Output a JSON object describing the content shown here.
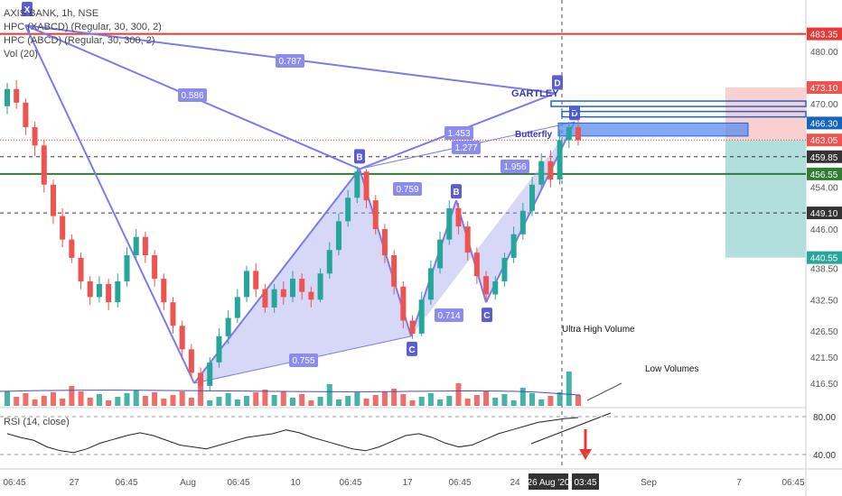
{
  "header": {
    "title": "AXIS BANK, 1h, NSE",
    "studies": [
      "HPC (XABCD) (Regular, 30, 300, 2)",
      "HPC (ABCD) (Regular, 30, 300, 2)",
      "Vol (20)"
    ]
  },
  "rsi_label": "RSI (14, close)",
  "notes": {
    "ultra": "Ultra High Volume",
    "low": "Low Volumes"
  },
  "colors": {
    "up": "#26a69a",
    "down": "#ef5350",
    "pattern": "#7b7bea",
    "pattern_fill": "#a7a7f0",
    "resistance": "#e53935",
    "support": "#2e7d32",
    "target_zone": "#b2dfdb",
    "stop_zone": "#f8d0d0",
    "rsi": "#222222"
  },
  "chart_data": {
    "type": "candlestick",
    "symbol": "AXIS BANK",
    "interval": "1h",
    "exchange": "NSE",
    "y_axis_ticks": [
      480.0,
      470.0,
      454.0,
      446.0,
      438.5,
      432.5,
      426.5,
      421.5,
      416.5
    ],
    "y_axis_price_labels": [
      {
        "value": "483.35",
        "color": "#e53935"
      },
      {
        "value": "473.10",
        "color": "#ef5350"
      },
      {
        "value": "466.30",
        "color": "#1565c0"
      },
      {
        "value": "463.05",
        "color": "#ef5350"
      },
      {
        "value": "459.85",
        "color": "#333333"
      },
      {
        "value": "456.55",
        "color": "#2e7d32"
      },
      {
        "value": "449.10",
        "color": "#333333"
      },
      {
        "value": "440.55",
        "color": "#26a69a"
      }
    ],
    "x_axis_ticks": [
      "06:45",
      "27",
      "06:45",
      "Aug",
      "06:45",
      "10",
      "06:45",
      "17",
      "06:45",
      "24",
      "26 Aug '20",
      "03:45",
      "Sep",
      "7",
      "06:45"
    ],
    "horizontal_levels": [
      {
        "price": 483.35,
        "style": "resistance"
      },
      {
        "price": 456.55,
        "style": "support"
      },
      {
        "price": 459.85,
        "style": "dashed"
      },
      {
        "price": 449.1,
        "style": "dashed"
      },
      {
        "price": 463.05,
        "style": "dotted"
      }
    ],
    "pattern_points": [
      {
        "label": "X",
        "price": 485.0
      },
      {
        "label": "B",
        "price": 457.5
      },
      {
        "label": "B",
        "price": 451.5
      },
      {
        "label": "C",
        "price": 425.5
      },
      {
        "label": "C",
        "price": 432.0
      },
      {
        "label": "D",
        "price": 472.0
      },
      {
        "label": "D",
        "price": 466.5
      }
    ],
    "ratios": [
      "0.787",
      "0.586",
      "0.759",
      "1.453",
      "1.277",
      "1.956",
      "0.714",
      "0.755"
    ],
    "pattern_names": [
      "GARTLEY",
      "Butterfly"
    ],
    "rsi": {
      "ticks": [
        "80.00",
        "40.00"
      ],
      "values": [
        62,
        58,
        55,
        48,
        44,
        42,
        46,
        52,
        56,
        60,
        63,
        60,
        55,
        50,
        48,
        46,
        50,
        54,
        58,
        60,
        62,
        66,
        63,
        58,
        54,
        50,
        46,
        44,
        48,
        54,
        60,
        62,
        58,
        52,
        48,
        50,
        56,
        62,
        66,
        70,
        74,
        76,
        78,
        79
      ]
    },
    "candles": [
      {
        "o": 469.5,
        "c": 472.8,
        "h": 474.0,
        "l": 468.0
      },
      {
        "o": 472.8,
        "c": 470.2,
        "h": 474.5,
        "l": 469.0
      },
      {
        "o": 470.2,
        "c": 465.5,
        "h": 471.0,
        "l": 464.0
      },
      {
        "o": 465.5,
        "c": 462.0,
        "h": 466.5,
        "l": 460.0
      },
      {
        "o": 462.0,
        "c": 454.5,
        "h": 463.0,
        "l": 453.0
      },
      {
        "o": 454.5,
        "c": 448.5,
        "h": 455.5,
        "l": 447.0
      },
      {
        "o": 448.5,
        "c": 444.0,
        "h": 450.0,
        "l": 442.5
      },
      {
        "o": 444.0,
        "c": 440.5,
        "h": 445.0,
        "l": 439.5
      },
      {
        "o": 440.5,
        "c": 436.0,
        "h": 441.5,
        "l": 434.5
      },
      {
        "o": 436.0,
        "c": 433.0,
        "h": 437.0,
        "l": 431.5
      },
      {
        "o": 433.0,
        "c": 435.5,
        "h": 437.0,
        "l": 432.0
      },
      {
        "o": 435.5,
        "c": 432.0,
        "h": 436.5,
        "l": 430.5
      },
      {
        "o": 432.0,
        "c": 436.0,
        "h": 437.5,
        "l": 431.0
      },
      {
        "o": 436.0,
        "c": 441.0,
        "h": 442.5,
        "l": 435.0
      },
      {
        "o": 441.0,
        "c": 444.5,
        "h": 446.0,
        "l": 440.0
      },
      {
        "o": 444.5,
        "c": 441.0,
        "h": 445.5,
        "l": 439.5
      },
      {
        "o": 441.0,
        "c": 436.5,
        "h": 442.0,
        "l": 435.0
      },
      {
        "o": 436.5,
        "c": 432.0,
        "h": 437.5,
        "l": 430.5
      },
      {
        "o": 432.0,
        "c": 427.5,
        "h": 433.0,
        "l": 426.0
      },
      {
        "o": 427.5,
        "c": 423.0,
        "h": 428.5,
        "l": 421.0
      },
      {
        "o": 423.0,
        "c": 418.5,
        "h": 424.0,
        "l": 417.5
      },
      {
        "o": 418.5,
        "c": 416.0,
        "h": 419.5,
        "l": 415.0
      },
      {
        "o": 416.0,
        "c": 420.5,
        "h": 421.5,
        "l": 415.0
      },
      {
        "o": 420.5,
        "c": 425.5,
        "h": 427.0,
        "l": 419.5
      },
      {
        "o": 425.5,
        "c": 429.0,
        "h": 430.5,
        "l": 424.0
      },
      {
        "o": 429.0,
        "c": 433.0,
        "h": 434.5,
        "l": 428.0
      },
      {
        "o": 433.0,
        "c": 438.0,
        "h": 439.0,
        "l": 432.0
      },
      {
        "o": 438.0,
        "c": 434.5,
        "h": 439.5,
        "l": 433.0
      },
      {
        "o": 434.5,
        "c": 431.0,
        "h": 435.5,
        "l": 430.0
      },
      {
        "o": 431.0,
        "c": 434.5,
        "h": 435.5,
        "l": 430.0
      },
      {
        "o": 434.5,
        "c": 433.0,
        "h": 436.0,
        "l": 431.5
      },
      {
        "o": 433.0,
        "c": 436.5,
        "h": 438.0,
        "l": 432.0
      },
      {
        "o": 436.5,
        "c": 434.0,
        "h": 437.5,
        "l": 432.5
      },
      {
        "o": 434.0,
        "c": 432.5,
        "h": 435.0,
        "l": 431.0
      },
      {
        "o": 432.5,
        "c": 437.5,
        "h": 438.5,
        "l": 432.0
      },
      {
        "o": 437.5,
        "c": 442.0,
        "h": 443.5,
        "l": 436.5
      },
      {
        "o": 442.0,
        "c": 447.5,
        "h": 449.0,
        "l": 441.0
      },
      {
        "o": 447.5,
        "c": 452.0,
        "h": 453.5,
        "l": 446.5
      },
      {
        "o": 452.0,
        "c": 457.0,
        "h": 458.0,
        "l": 451.0
      },
      {
        "o": 457.0,
        "c": 451.5,
        "h": 457.5,
        "l": 450.0
      },
      {
        "o": 451.5,
        "c": 446.0,
        "h": 452.5,
        "l": 445.0
      },
      {
        "o": 446.0,
        "c": 441.0,
        "h": 447.0,
        "l": 439.5
      },
      {
        "o": 441.0,
        "c": 435.0,
        "h": 442.0,
        "l": 433.5
      },
      {
        "o": 435.0,
        "c": 428.5,
        "h": 436.0,
        "l": 427.0
      },
      {
        "o": 428.5,
        "c": 426.0,
        "h": 429.5,
        "l": 425.0
      },
      {
        "o": 426.0,
        "c": 432.5,
        "h": 434.0,
        "l": 425.5
      },
      {
        "o": 432.5,
        "c": 438.5,
        "h": 440.0,
        "l": 431.5
      },
      {
        "o": 438.5,
        "c": 444.0,
        "h": 445.5,
        "l": 437.5
      },
      {
        "o": 444.0,
        "c": 450.0,
        "h": 451.5,
        "l": 443.0
      },
      {
        "o": 450.0,
        "c": 446.5,
        "h": 451.0,
        "l": 445.0
      },
      {
        "o": 446.5,
        "c": 441.5,
        "h": 447.5,
        "l": 440.0
      },
      {
        "o": 441.5,
        "c": 437.0,
        "h": 442.5,
        "l": 435.5
      },
      {
        "o": 437.0,
        "c": 433.5,
        "h": 438.0,
        "l": 432.0
      },
      {
        "o": 433.5,
        "c": 436.0,
        "h": 437.0,
        "l": 432.5
      },
      {
        "o": 436.0,
        "c": 440.5,
        "h": 441.5,
        "l": 435.0
      },
      {
        "o": 440.5,
        "c": 445.0,
        "h": 446.5,
        "l": 439.5
      },
      {
        "o": 445.0,
        "c": 449.5,
        "h": 451.0,
        "l": 444.0
      },
      {
        "o": 449.5,
        "c": 454.5,
        "h": 456.0,
        "l": 448.5
      },
      {
        "o": 454.5,
        "c": 459.0,
        "h": 460.5,
        "l": 453.5
      },
      {
        "o": 459.0,
        "c": 455.5,
        "h": 461.0,
        "l": 454.0
      },
      {
        "o": 455.5,
        "c": 463.0,
        "h": 465.0,
        "l": 454.5
      },
      {
        "o": 463.0,
        "c": 465.5,
        "h": 466.5,
        "l": 461.5
      },
      {
        "o": 465.5,
        "c": 463.0,
        "h": 467.0,
        "l": 462.0
      }
    ]
  }
}
